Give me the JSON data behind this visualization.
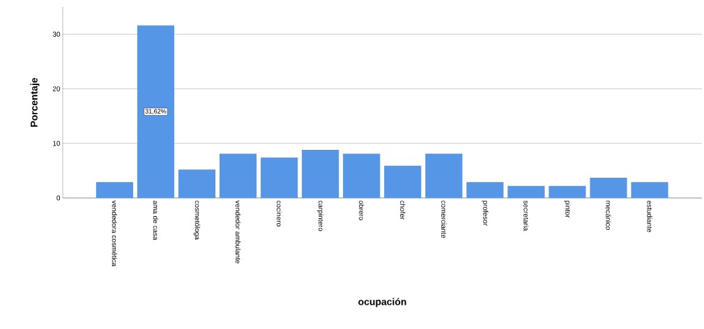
{
  "chart_data": {
    "type": "bar",
    "xlabel": "ocupación",
    "ylabel": "Porcentaje",
    "categories": [
      "vendedora cosmética",
      "ama de casa",
      "cosmetóloga",
      "vendedor ambulante",
      "cocinero",
      "carpintero",
      "obrero",
      "chofer",
      "comerciante",
      "profesor",
      "secretaria",
      "pintor",
      "mecánico",
      "estudiante"
    ],
    "values": [
      2.9,
      31.62,
      5.2,
      8.1,
      7.4,
      8.8,
      8.1,
      5.9,
      8.1,
      2.9,
      2.2,
      2.2,
      3.7,
      2.9
    ],
    "value_labels": [
      null,
      "31,62%",
      null,
      null,
      null,
      null,
      null,
      null,
      null,
      null,
      null,
      null,
      null,
      null
    ],
    "color": "#5596e6",
    "ylim": [
      0,
      35
    ],
    "yticks": [
      0,
      10,
      20,
      30
    ],
    "grid": "y"
  }
}
